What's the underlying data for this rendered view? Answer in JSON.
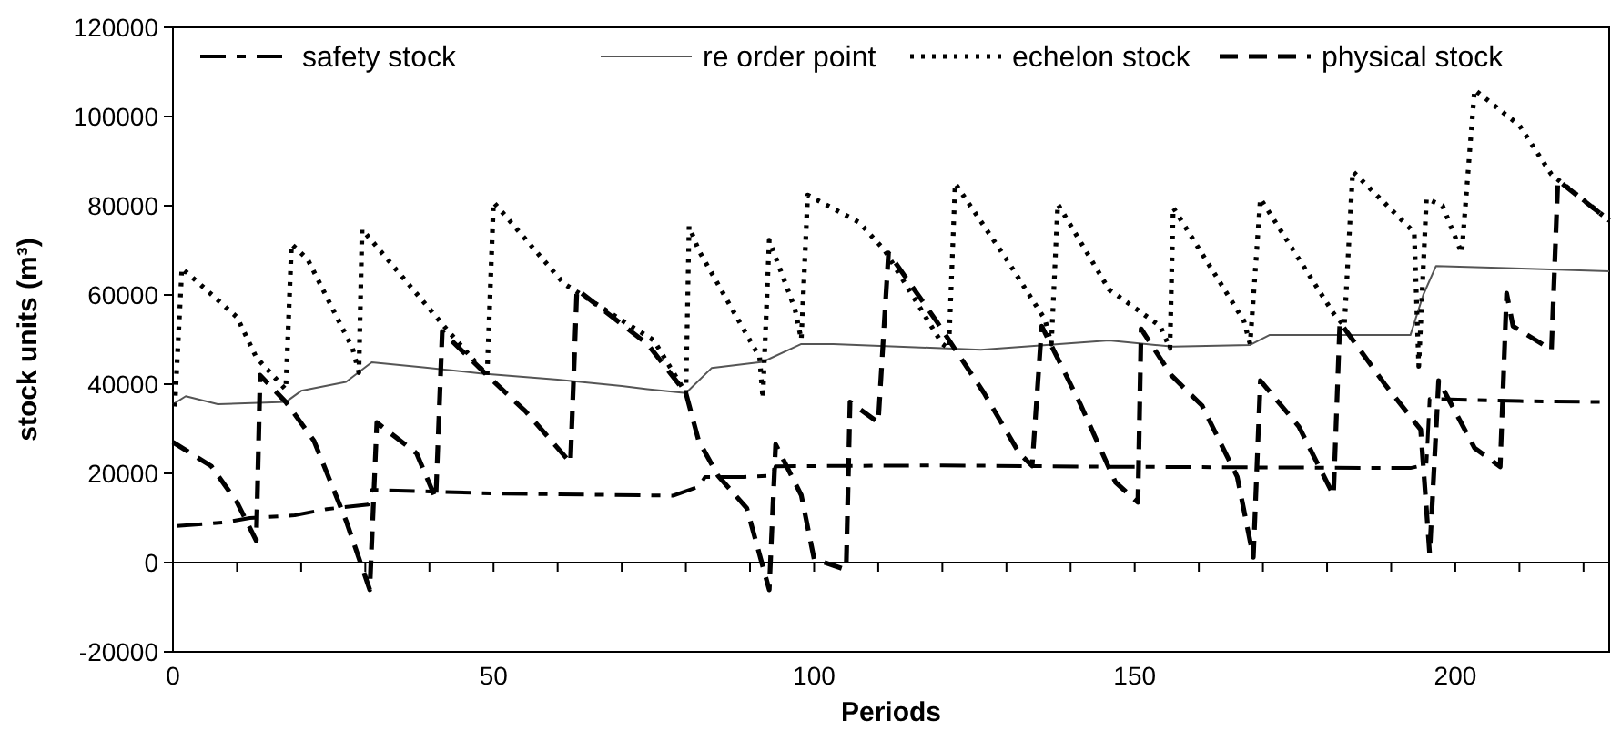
{
  "chart_data": {
    "type": "line",
    "xlabel": "Periods",
    "ylabel": "stock units (m³)",
    "xlim": [
      0,
      224
    ],
    "ylim": [
      -20000,
      120000
    ],
    "xticks": [
      0,
      {
        "value": 10,
        "label": null
      },
      {
        "value": 20,
        "label": null
      },
      {
        "value": 30,
        "label": null
      },
      {
        "value": 40,
        "label": null
      },
      50,
      {
        "value": 60,
        "label": null
      },
      {
        "value": 70,
        "label": null
      },
      {
        "value": 80,
        "label": null
      },
      {
        "value": 90,
        "label": null
      },
      100,
      {
        "value": 110,
        "label": null
      },
      {
        "value": 120,
        "label": null
      },
      {
        "value": 130,
        "label": null
      },
      {
        "value": 140,
        "label": null
      },
      150,
      {
        "value": 160,
        "label": null
      },
      {
        "value": 170,
        "label": null
      },
      {
        "value": 180,
        "label": null
      },
      {
        "value": 190,
        "label": null
      },
      200,
      {
        "value": 210,
        "label": null
      },
      {
        "value": 220,
        "label": null
      }
    ],
    "yticks": [
      -20000,
      0,
      20000,
      40000,
      60000,
      80000,
      100000,
      120000
    ],
    "ref_lines": [
      {
        "axis": "y",
        "value": 0,
        "color": "#000000"
      }
    ],
    "legend": "top",
    "marker": "none",
    "series": [
      {
        "name": "safety stock",
        "color": "#000000",
        "line_style": "dashdot",
        "x": [
          0.6,
          8,
          12,
          19,
          24,
          30.5,
          31,
          50,
          78,
          82,
          83,
          89,
          93.5,
          94,
          120,
          146,
          193,
          195.5,
          196,
          210,
          224
        ],
        "values": [
          8200,
          9000,
          10000,
          10600,
          12000,
          13000,
          16300,
          15500,
          15000,
          17000,
          19200,
          19200,
          19500,
          21600,
          21800,
          21500,
          21200,
          22000,
          36700,
          36200,
          36000
        ]
      },
      {
        "name": "re order point",
        "color": "#555555",
        "line_style": "solid",
        "x": [
          0,
          2,
          7,
          17.6,
          20,
          27,
          31,
          39,
          48,
          60,
          70,
          74,
          80,
          84,
          92,
          98,
          103,
          126,
          146,
          156,
          168,
          171,
          193,
          195,
          197,
          208,
          224
        ],
        "values": [
          35500,
          37300,
          35500,
          36000,
          38500,
          40500,
          44900,
          43800,
          42400,
          41000,
          39600,
          38900,
          38000,
          43600,
          45000,
          49000,
          49000,
          47700,
          49800,
          48400,
          48800,
          51000,
          51000,
          60000,
          66500,
          66000,
          65300
        ]
      },
      {
        "name": "echelon stock",
        "color": "#000000",
        "line_style": "dotted",
        "x": [
          0.3,
          1.4,
          10,
          13,
          17.6,
          18.5,
          21,
          28,
          29,
          29.5,
          43,
          49,
          50,
          61,
          75,
          80,
          80.5,
          82,
          91.5,
          92,
          93,
          97,
          98,
          99,
          107,
          111,
          120,
          121,
          122,
          130,
          136,
          137,
          138,
          146,
          154,
          155.5,
          156,
          167,
          168,
          169.6,
          181,
          182.7,
          184,
          193.6,
          194.3,
          195.5,
          198,
          201,
          203,
          210,
          215,
          224
        ],
        "values": [
          35000,
          66000,
          55000,
          46000,
          38800,
          71400,
          68000,
          48100,
          42600,
          74700,
          51800,
          42000,
          80800,
          62500,
          49800,
          38000,
          75400,
          70000,
          46000,
          36800,
          72300,
          56900,
          50000,
          82400,
          76300,
          70000,
          49000,
          48000,
          85000,
          68000,
          54500,
          49000,
          80400,
          61200,
          53000,
          48000,
          79600,
          54300,
          49000,
          81600,
          55900,
          53000,
          87700,
          74000,
          44000,
          81600,
          80000,
          69400,
          106000,
          98000,
          87000,
          76700
        ]
      },
      {
        "name": "physical stock",
        "color": "#000000",
        "line_style": "dashed",
        "x": [
          0,
          6,
          10,
          13,
          13.6,
          17.6,
          22,
          27,
          30.7,
          31.8,
          38,
          41,
          42,
          49,
          55,
          62,
          63,
          74,
          80,
          82,
          85,
          89.5,
          93,
          94,
          98,
          100,
          105,
          105.6,
          110,
          111.6,
          119,
          126.5,
          132,
          134,
          135.5,
          141.5,
          147,
          150.5,
          151,
          155.7,
          160.5,
          166,
          168.5,
          169.6,
          175.6,
          181,
          182,
          189,
          194.6,
          196,
          197.4,
          203,
          207,
          208,
          209,
          215,
          216,
          224
        ],
        "values": [
          27000,
          21600,
          13500,
          4900,
          42000,
          36000,
          27300,
          9400,
          -6100,
          31400,
          24500,
          14300,
          51800,
          42000,
          33900,
          22400,
          61200,
          49000,
          38000,
          27300,
          19500,
          12200,
          -6100,
          26500,
          15100,
          800,
          -1600,
          36000,
          31400,
          69400,
          54300,
          38000,
          24500,
          21700,
          53000,
          35600,
          18000,
          13500,
          52400,
          42000,
          35200,
          19200,
          1200,
          40800,
          30500,
          15100,
          53900,
          40000,
          29800,
          2000,
          40800,
          25700,
          21500,
          60400,
          53000,
          47700,
          85700,
          76700
        ]
      }
    ]
  }
}
